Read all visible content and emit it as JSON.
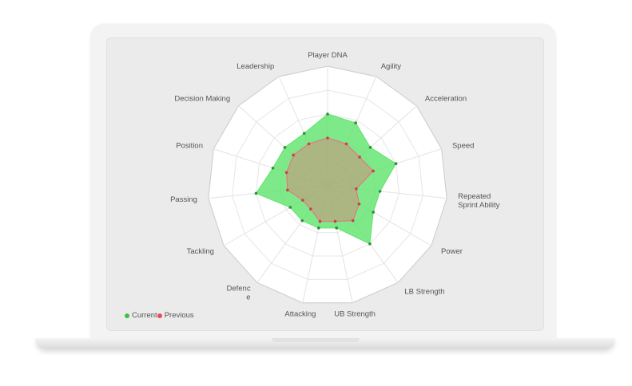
{
  "chart_data": {
    "type": "radar",
    "axes": [
      "Player DNA",
      "Agility",
      "Acceleration",
      "Speed",
      "Repeated Sprint Ability",
      "Power",
      "LB Strength",
      "UB Strength",
      "Attacking",
      "Defence",
      "Tackling",
      "Passing",
      "Position",
      "Decision Making",
      "Leadership"
    ],
    "series": [
      {
        "name": "Current",
        "color": "#5ee36a",
        "values": [
          75,
          72,
          60,
          75,
          55,
          55,
          75,
          45,
          45,
          45,
          45,
          75,
          60,
          60,
          60
        ]
      },
      {
        "name": "Previous",
        "color": "#f06a7e",
        "values": [
          50,
          48,
          45,
          50,
          30,
          38,
          45,
          38,
          38,
          30,
          30,
          42,
          45,
          48,
          48
        ]
      }
    ],
    "rmax": 125,
    "rings": 5,
    "legend": [
      {
        "label": "Current",
        "color": "#3fbf4a"
      },
      {
        "label": "Previous",
        "color": "#e84a5f"
      }
    ]
  }
}
